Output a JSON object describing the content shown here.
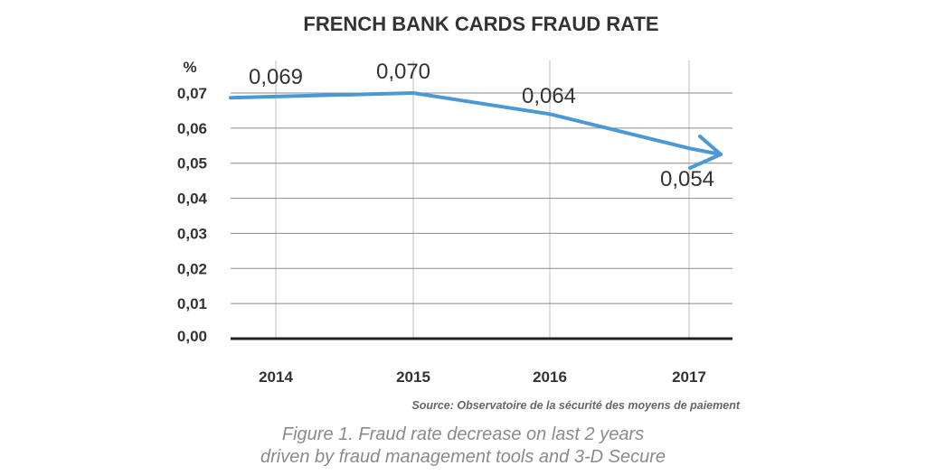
{
  "chart_data": {
    "type": "line",
    "title": "FRENCH BANK CARDS FRAUD RATE",
    "ylabel": "%",
    "xlabel": "",
    "categories": [
      "2014",
      "2015",
      "2016",
      "2017"
    ],
    "series": [
      {
        "values": [
          0.069,
          0.07,
          0.064,
          0.054
        ],
        "color": "#4a98d4"
      }
    ],
    "data_labels": [
      "0,069",
      "0,070",
      "0,064",
      "0,054"
    ],
    "ylim": [
      0,
      0.07
    ],
    "yticks": [
      0,
      0.01,
      0.02,
      0.03,
      0.04,
      0.05,
      0.06,
      0.07
    ],
    "ytick_labels": [
      "0,00",
      "0,01",
      "0,02",
      "0,03",
      "0,04",
      "0,05",
      "0,06",
      "0,07"
    ],
    "grid": true,
    "source": "Source: Observatoire de la sécurité des moyens de paiement",
    "arrow_end": true
  },
  "caption": {
    "line1": "Figure 1. Fraud rate decrease on last 2 years",
    "line2": "driven by fraud management tools and 3-D Secure"
  }
}
